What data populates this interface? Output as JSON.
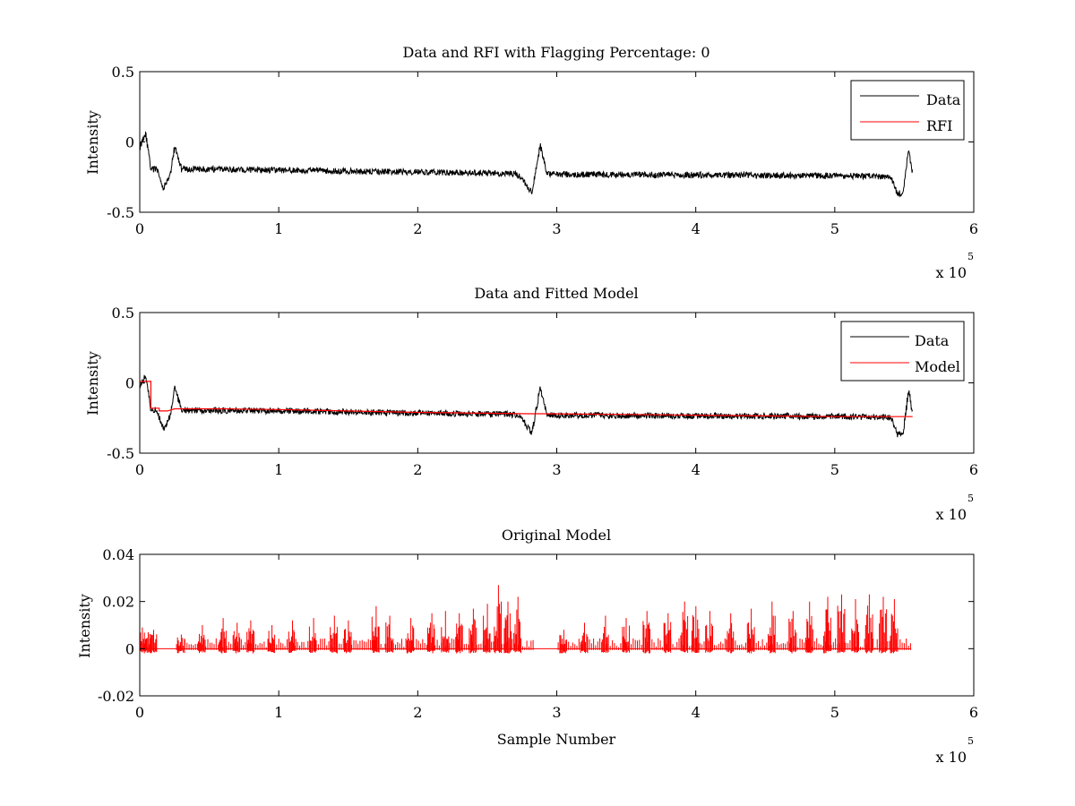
{
  "chart_data": [
    {
      "type": "line",
      "title": "Data and RFI with Flagging Percentage: 0",
      "xlabel": "",
      "ylabel": "Intensity",
      "xlim": [
        0,
        600000
      ],
      "ylim": [
        -0.5,
        0.5
      ],
      "xticks": [
        0,
        1,
        2,
        3,
        4,
        5,
        6
      ],
      "yticks": [
        -0.5,
        0,
        0.5
      ],
      "xtick_labels": [
        "0",
        "1",
        "2",
        "3",
        "4",
        "5",
        "6"
      ],
      "ytick_labels": [
        "-0.5",
        "0",
        "0.5"
      ],
      "x_exponent_label": "x 10",
      "x_exponent": "5",
      "legend": "top-right",
      "grid": false,
      "series": [
        {
          "name": "Data",
          "color": "#000000",
          "style": "noisy",
          "noise": 0.022,
          "x": [
            0,
            4000,
            8000,
            12000,
            17000,
            22000,
            25000,
            30000,
            60000,
            100000,
            200000,
            270000,
            275000,
            282000,
            288000,
            293000,
            300000,
            400000,
            500000,
            540000,
            545000,
            549000,
            553000,
            556000
          ],
          "y": [
            -0.04,
            0.06,
            -0.2,
            -0.19,
            -0.33,
            -0.23,
            -0.03,
            -0.195,
            -0.195,
            -0.2,
            -0.215,
            -0.225,
            -0.26,
            -0.36,
            -0.03,
            -0.23,
            -0.23,
            -0.235,
            -0.24,
            -0.245,
            -0.37,
            -0.36,
            -0.05,
            -0.23
          ]
        },
        {
          "name": "RFI",
          "color": "#ff0000",
          "style": "line",
          "x": [],
          "y": []
        }
      ]
    },
    {
      "type": "line",
      "title": "Data and Fitted Model",
      "xlabel": "",
      "ylabel": "Intensity",
      "xlim": [
        0,
        600000
      ],
      "ylim": [
        -0.5,
        0.5
      ],
      "xticks": [
        0,
        1,
        2,
        3,
        4,
        5,
        6
      ],
      "yticks": [
        -0.5,
        0,
        0.5
      ],
      "xtick_labels": [
        "0",
        "1",
        "2",
        "3",
        "4",
        "5",
        "6"
      ],
      "ytick_labels": [
        "-0.5",
        "0",
        "0.5"
      ],
      "x_exponent_label": "x 10",
      "x_exponent": "5",
      "legend": "top-right",
      "grid": false,
      "series": [
        {
          "name": "Data",
          "color": "#000000",
          "style": "noisy",
          "noise": 0.022,
          "x": [
            0,
            4000,
            8000,
            12000,
            17000,
            22000,
            25000,
            30000,
            60000,
            100000,
            200000,
            270000,
            275000,
            282000,
            288000,
            293000,
            300000,
            400000,
            500000,
            540000,
            545000,
            549000,
            553000,
            556000
          ],
          "y": [
            -0.04,
            0.06,
            -0.2,
            -0.19,
            -0.33,
            -0.23,
            -0.03,
            -0.195,
            -0.195,
            -0.2,
            -0.215,
            -0.225,
            -0.26,
            -0.36,
            -0.03,
            -0.23,
            -0.23,
            -0.235,
            -0.24,
            -0.245,
            -0.37,
            -0.36,
            -0.05,
            -0.23
          ]
        },
        {
          "name": "Model",
          "color": "#ff0000",
          "style": "step",
          "x": [
            0,
            8000,
            8000,
            14000,
            14000,
            20000,
            25000,
            60000,
            100000,
            150000,
            200000,
            280000,
            290000,
            350000,
            400000,
            450000,
            500000,
            556000
          ],
          "y": [
            0.01,
            0.01,
            -0.18,
            -0.18,
            -0.2,
            -0.2,
            -0.185,
            -0.185,
            -0.19,
            -0.2,
            -0.21,
            -0.22,
            -0.22,
            -0.225,
            -0.23,
            -0.235,
            -0.24,
            -0.24
          ]
        }
      ]
    },
    {
      "type": "line",
      "title": "Original Model",
      "xlabel": "Sample Number",
      "ylabel": "Intensity",
      "xlim": [
        0,
        600000
      ],
      "ylim": [
        -0.02,
        0.04
      ],
      "xticks": [
        0,
        1,
        2,
        3,
        4,
        5,
        6
      ],
      "yticks": [
        -0.02,
        0,
        0.02,
        0.04
      ],
      "xtick_labels": [
        "0",
        "1",
        "2",
        "3",
        "4",
        "5",
        "6"
      ],
      "ytick_labels": [
        "-0.02",
        "0",
        "0.02",
        "0.04"
      ],
      "x_exponent_label": "x 10",
      "x_exponent": "5",
      "grid": false,
      "series": [
        {
          "name": "",
          "color": "#ff0000",
          "style": "spikes",
          "x": [
            2000,
            6000,
            10000,
            30000,
            45000,
            60000,
            70000,
            80000,
            95000,
            110000,
            125000,
            140000,
            150000,
            170000,
            180000,
            195000,
            210000,
            220000,
            230000,
            240000,
            250000,
            258000,
            265000,
            272000,
            305000,
            320000,
            335000,
            350000,
            365000,
            380000,
            392000,
            400000,
            410000,
            425000,
            440000,
            455000,
            470000,
            482000,
            495000,
            505000,
            515000,
            525000,
            535000,
            543000
          ],
          "y": [
            0.009,
            0.007,
            0.008,
            0.006,
            0.01,
            0.013,
            0.011,
            0.012,
            0.01,
            0.012,
            0.013,
            0.014,
            0.012,
            0.018,
            0.014,
            0.013,
            0.015,
            0.016,
            0.015,
            0.017,
            0.019,
            0.027,
            0.02,
            0.022,
            0.008,
            0.011,
            0.014,
            0.013,
            0.016,
            0.015,
            0.02,
            0.018,
            0.016,
            0.015,
            0.017,
            0.02,
            0.016,
            0.02,
            0.022,
            0.023,
            0.021,
            0.023,
            0.022,
            0.021
          ]
        }
      ]
    }
  ]
}
